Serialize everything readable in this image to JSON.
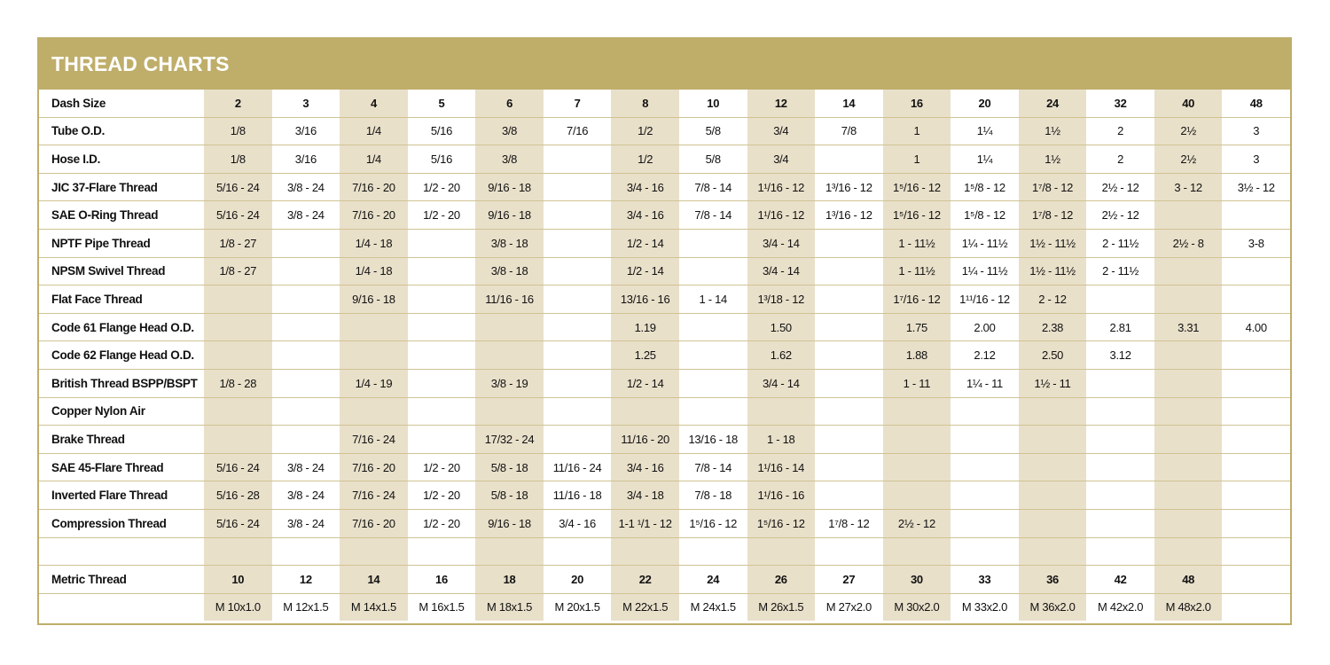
{
  "title": "THREAD CHARTS",
  "colors": {
    "header": "#bfae6a",
    "shaded_column": "#e9e0ca",
    "rule": "#cfc393"
  },
  "rows": [
    {
      "label": "Dash Size",
      "bold": true,
      "cells": [
        "2",
        "3",
        "4",
        "5",
        "6",
        "7",
        "8",
        "10",
        "12",
        "14",
        "16",
        "20",
        "24",
        "32",
        "40",
        "48"
      ]
    },
    {
      "label": "Tube O.D.",
      "cells": [
        "1/8",
        "3/16",
        "1/4",
        "5/16",
        "3/8",
        "7/16",
        "1/2",
        "5/8",
        "3/4",
        "7/8",
        "1",
        "1¼",
        "1½",
        "2",
        "2½",
        "3"
      ]
    },
    {
      "label": "Hose I.D.",
      "cells": [
        "1/8",
        "3/16",
        "1/4",
        "5/16",
        "3/8",
        "",
        "1/2",
        "5/8",
        "3/4",
        "",
        "1",
        "1¼",
        "1½",
        "2",
        "2½",
        "3"
      ]
    },
    {
      "label": "JIC 37-Flare Thread",
      "cells": [
        "5/16 - 24",
        "3/8 - 24",
        "7/16 - 20",
        "1/2 - 20",
        "9/16 - 18",
        "",
        "3/4 - 16",
        "7/8 - 14",
        "1¹/16 - 12",
        "1³/16 - 12",
        "1⁵/16 - 12",
        "1⁵/8 - 12",
        "1⁷/8 - 12",
        "2½ - 12",
        "3 - 12",
        "3½ - 12"
      ]
    },
    {
      "label": "SAE O-Ring Thread",
      "cells": [
        "5/16 - 24",
        "3/8 - 24",
        "7/16 - 20",
        "1/2 - 20",
        "9/16 - 18",
        "",
        "3/4 - 16",
        "7/8 - 14",
        "1¹/16 - 12",
        "1³/16 - 12",
        "1⁵/16 - 12",
        "1⁵/8 - 12",
        "1⁷/8 - 12",
        "2½ - 12",
        "",
        ""
      ]
    },
    {
      "label": "NPTF Pipe Thread",
      "cells": [
        "1/8 - 27",
        "",
        "1/4 - 18",
        "",
        "3/8 - 18",
        "",
        "1/2 - 14",
        "",
        "3/4 - 14",
        "",
        "1 - 11½",
        "1¼ - 11½",
        "1½ - 11½",
        "2 - 11½",
        "2½ - 8",
        "3-8"
      ]
    },
    {
      "label": "NPSM Swivel Thread",
      "cells": [
        "1/8 - 27",
        "",
        "1/4 - 18",
        "",
        "3/8 - 18",
        "",
        "1/2 - 14",
        "",
        "3/4 - 14",
        "",
        "1 - 11½",
        "1¼ - 11½",
        "1½ - 11½",
        "2 - 11½",
        "",
        ""
      ]
    },
    {
      "label": "Flat Face Thread",
      "cells": [
        "",
        "",
        "9/16 - 18",
        "",
        "11/16 - 16",
        "",
        "13/16 - 16",
        "1 - 14",
        "1³/18 - 12",
        "",
        "1⁷/16 - 12",
        "1¹¹/16 - 12",
        "2 - 12",
        "",
        "",
        ""
      ]
    },
    {
      "label": "Code 61 Flange Head O.D.",
      "cells": [
        "",
        "",
        "",
        "",
        "",
        "",
        "1.19",
        "",
        "1.50",
        "",
        "1.75",
        "2.00",
        "2.38",
        "2.81",
        "3.31",
        "4.00"
      ]
    },
    {
      "label": "Code 62 Flange Head O.D.",
      "cells": [
        "",
        "",
        "",
        "",
        "",
        "",
        "1.25",
        "",
        "1.62",
        "",
        "1.88",
        "2.12",
        "2.50",
        "3.12",
        "",
        ""
      ]
    },
    {
      "label": "British Thread BSPP/BSPT",
      "cells": [
        "1/8 - 28",
        "",
        "1/4 - 19",
        "",
        "3/8 - 19",
        "",
        "1/2 - 14",
        "",
        "3/4 - 14",
        "",
        "1 - 11",
        "1¼ - 11",
        "1½ - 11",
        "",
        "",
        ""
      ]
    },
    {
      "label": "Copper Nylon Air",
      "cells": [
        "",
        "",
        "",
        "",
        "",
        "",
        "",
        "",
        "",
        "",
        "",
        "",
        "",
        "",
        "",
        ""
      ]
    },
    {
      "label": "Brake Thread",
      "cells": [
        "",
        "",
        "7/16 - 24",
        "",
        "17/32 - 24",
        "",
        "11/16 - 20",
        "13/16 - 18",
        "1 - 18",
        "",
        "",
        "",
        "",
        "",
        "",
        ""
      ]
    },
    {
      "label": "SAE 45-Flare Thread",
      "cells": [
        "5/16 - 24",
        "3/8 - 24",
        "7/16 - 20",
        "1/2 - 20",
        "5/8 - 18",
        "11/16 - 24",
        "3/4 - 16",
        "7/8 - 14",
        "1¹/16 - 14",
        "",
        "",
        "",
        "",
        "",
        "",
        ""
      ]
    },
    {
      "label": "Inverted Flare Thread",
      "cells": [
        "5/16 - 28",
        "3/8 - 24",
        "7/16 - 24",
        "1/2 - 20",
        "5/8 - 18",
        "11/16 - 18",
        "3/4 - 18",
        "7/8 - 18",
        "1¹/16 - 16",
        "",
        "",
        "",
        "",
        "",
        "",
        ""
      ]
    },
    {
      "label": "Compression Thread",
      "cells": [
        "5/16 - 24",
        "3/8 - 24",
        "7/16 - 20",
        "1/2 - 20",
        "9/16 - 18",
        "3/4 - 16",
        "1-1 ¹/1 - 12",
        "1⁵/16 - 12",
        "1⁵/16 - 12",
        "1⁷/8 - 12",
        "2½ - 12",
        "",
        "",
        "",
        "",
        ""
      ]
    },
    {
      "label": "",
      "cells": [
        "",
        "",
        "",
        "",
        "",
        "",
        "",
        "",
        "",
        "",
        "",
        "",
        "",
        "",
        "",
        ""
      ]
    },
    {
      "label": "Metric Thread",
      "bold": true,
      "cells": [
        "10",
        "12",
        "14",
        "16",
        "18",
        "20",
        "22",
        "24",
        "26",
        "27",
        "30",
        "33",
        "36",
        "42",
        "48",
        ""
      ]
    },
    {
      "label": "",
      "cells": [
        "M 10x1.0",
        "M 12x1.5",
        "M 14x1.5",
        "M 16x1.5",
        "M 18x1.5",
        "M 20x1.5",
        "M 22x1.5",
        "M 24x1.5",
        "M 26x1.5",
        "M 27x2.0",
        "M 30x2.0",
        "M 33x2.0",
        "M 36x2.0",
        "M 42x2.0",
        "M 48x2.0",
        ""
      ]
    }
  ]
}
